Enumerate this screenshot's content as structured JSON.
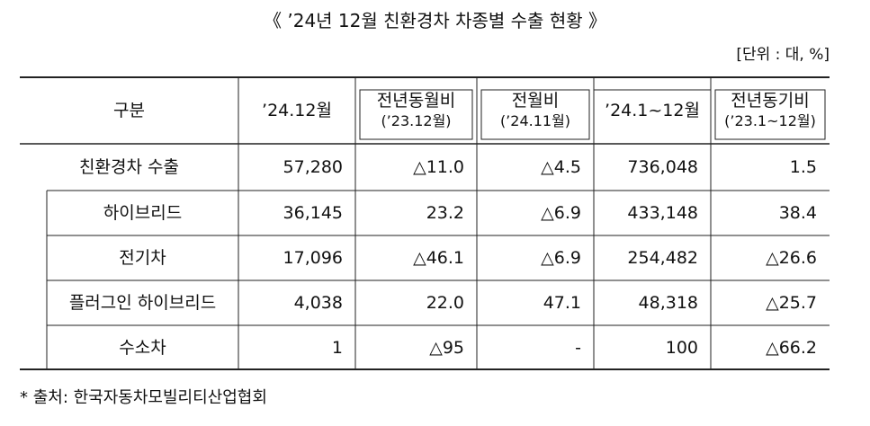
{
  "header": {
    "title": "《 ’24년 12월 친환경차 차종별 수출 현황 》",
    "unit": "[단위 : 대, %]"
  },
  "table": {
    "columns": [
      {
        "label": "구분"
      },
      {
        "label": "’24.12월"
      },
      {
        "label": "전년동월비",
        "sub": "(’23.12월)"
      },
      {
        "label": "전월비",
        "sub": "(’24.11월)"
      },
      {
        "label": "’24.1~12월"
      },
      {
        "label": "전년동기비",
        "sub": "(’23.1~12월)"
      }
    ],
    "rows": [
      [
        "친환경차 수출",
        "57,280",
        "△11.0",
        "△4.5",
        "736,048",
        "1.5"
      ],
      [
        "하이브리드",
        "36,145",
        "23.2",
        "△6.9",
        "433,148",
        "38.4"
      ],
      [
        "전기차",
        "17,096",
        "△46.1",
        "△6.9",
        "254,482",
        "△26.6"
      ],
      [
        "플러그인 하이브리드",
        "4,038",
        "22.0",
        "47.1",
        "48,318",
        "△25.7"
      ],
      [
        "수소차",
        "1",
        "△95",
        "-",
        "100",
        "△66.2"
      ]
    ]
  },
  "footer": {
    "source": "* 출처: 한국자동차모빌리티산업협회"
  }
}
